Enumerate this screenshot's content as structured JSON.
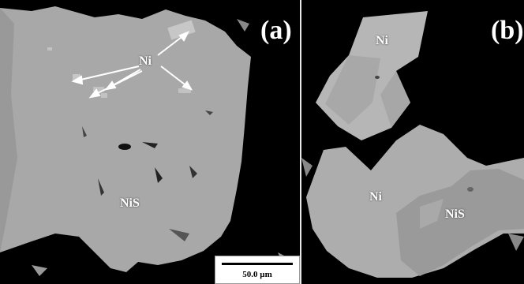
{
  "panels": {
    "a": {
      "label": "(a)",
      "phases": {
        "ni": "Ni",
        "nis": "NiS"
      }
    },
    "b": {
      "label": "(b)",
      "phases": {
        "ni_top": "Ni",
        "ni_mid": "Ni",
        "nis": "NiS"
      }
    }
  },
  "scalebar": {
    "label": "50.0 µm"
  },
  "colors": {
    "background": "#000000",
    "nis_phase": "#a9a9a9",
    "ni_phase": "#bdbdbd",
    "text": "#ffffff"
  }
}
